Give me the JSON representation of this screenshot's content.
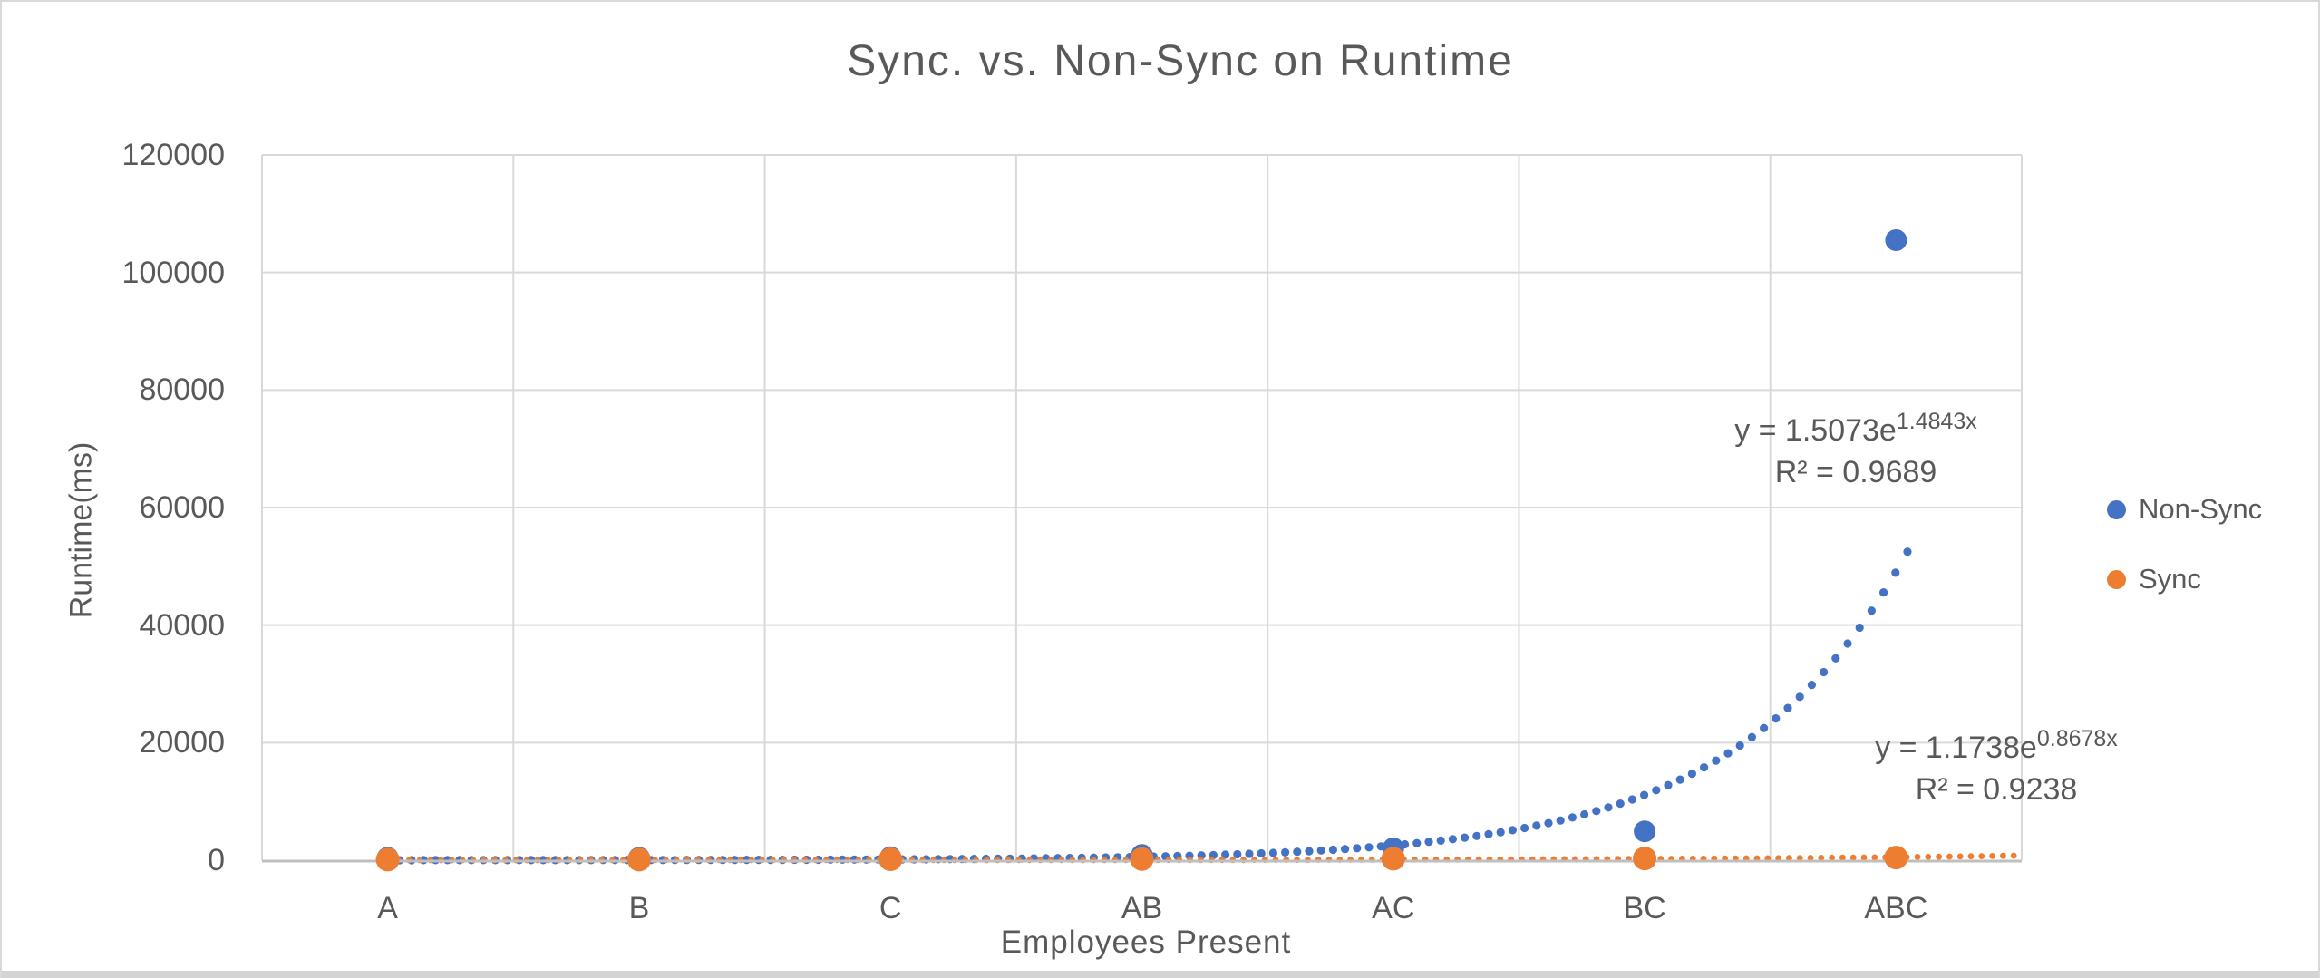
{
  "chart_data": {
    "type": "scatter",
    "title": "Sync. vs. Non-Sync on  Runtime",
    "xlabel": "Employees Present",
    "ylabel": "Runtime(ms)",
    "categories": [
      "A",
      "B",
      "C",
      "AB",
      "AC",
      "BC",
      "ABC"
    ],
    "y_ticks": [
      0,
      20000,
      40000,
      60000,
      80000,
      100000,
      120000
    ],
    "ylim": [
      0,
      120000
    ],
    "grid": true,
    "legend_position": "right",
    "series": [
      {
        "name": "Non-Sync",
        "color": "#4472C4",
        "values": [
          400,
          400,
          500,
          900,
          2000,
          4900,
          105500
        ],
        "trendline": {
          "type": "exponential",
          "a": 1.5073,
          "b": 1.4843,
          "r2": 0.9689,
          "equation_prefix": "y = 1.5073e",
          "equation_exponent": "1.4843x",
          "r2_label": "R² = 0.9689"
        }
      },
      {
        "name": "Sync",
        "color": "#ED7D31",
        "values": [
          100,
          100,
          150,
          200,
          250,
          300,
          450
        ],
        "trendline": {
          "type": "exponential",
          "a": 1.1738,
          "b": 0.8678,
          "r2": 0.9238,
          "equation_prefix": "y = 1.1738e",
          "equation_exponent": "0.8678x",
          "r2_label": "R² = 0.9238"
        }
      }
    ],
    "colors": {
      "gridline": "#D9D9D9",
      "axis_line": "#BFBFBF",
      "text": "#595959"
    }
  }
}
